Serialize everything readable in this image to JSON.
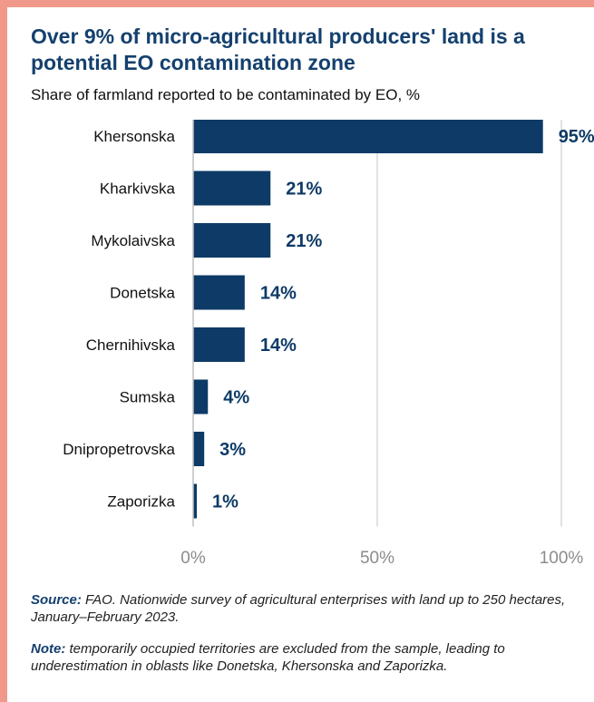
{
  "title": "Over 9% of micro-agricultural producers' land is a potential EO contamination zone",
  "subtitle": "Share of farmland reported to be contaminated by EO, %",
  "source": {
    "label": "Source:",
    "text": "FAO. Nationwide survey of agricultural enterprises with land up to 250 hectares, January–February 2023."
  },
  "note": {
    "label": "Note:",
    "text": "temporarily occupied territories are excluded from the sample, leading to underestimation in oblasts like Donetska, Khersonska and Zaporizka."
  },
  "colors": {
    "bar": "#0d3a66",
    "accent_border": "#f0998b",
    "grid": "#d9d9d9",
    "tick": "#8c8c8c"
  },
  "chart_data": {
    "type": "bar",
    "orientation": "horizontal",
    "categories": [
      "Khersonska",
      "Kharkivska",
      "Mykolaivska",
      "Donetska",
      "Chernihivska",
      "Sumska",
      "Dnipropetrovska",
      "Zaporizka"
    ],
    "values": [
      95,
      21,
      21,
      14,
      14,
      4,
      3,
      1
    ],
    "data_labels": [
      "95%",
      "21%",
      "21%",
      "14%",
      "14%",
      "4%",
      "3%",
      "1%"
    ],
    "xlim": [
      0,
      100
    ],
    "xticks": [
      0,
      50,
      100
    ],
    "xtick_labels": [
      "0%",
      "50%",
      "100%"
    ],
    "grid": true
  }
}
